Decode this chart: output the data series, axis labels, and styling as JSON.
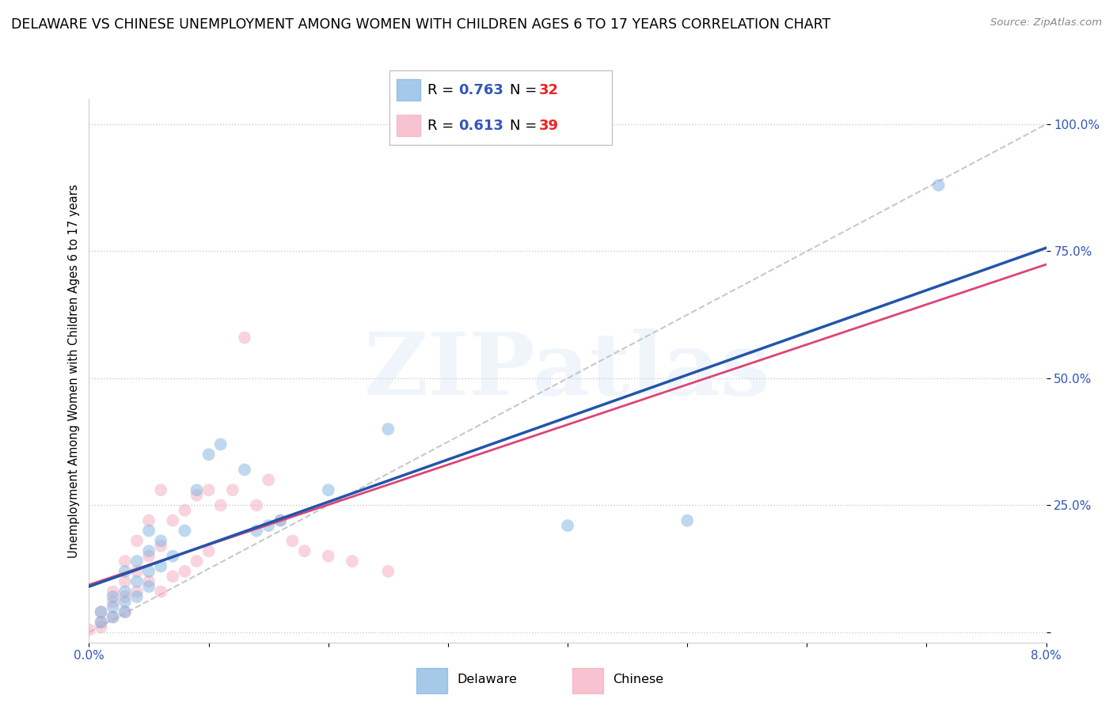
{
  "title": "DELAWARE VS CHINESE UNEMPLOYMENT AMONG WOMEN WITH CHILDREN AGES 6 TO 17 YEARS CORRELATION CHART",
  "source": "Source: ZipAtlas.com",
  "ylabel": "Unemployment Among Women with Children Ages 6 to 17 years",
  "xlim": [
    0.0,
    0.08
  ],
  "ylim": [
    -0.02,
    1.05
  ],
  "xticks": [
    0.0,
    0.01,
    0.02,
    0.03,
    0.04,
    0.05,
    0.06,
    0.07,
    0.08
  ],
  "xticklabels": [
    "0.0%",
    "",
    "",
    "",
    "",
    "",
    "",
    "",
    "8.0%"
  ],
  "ytick_positions": [
    0.0,
    0.25,
    0.5,
    0.75,
    1.0
  ],
  "yticklabels": [
    "",
    "25.0%",
    "50.0%",
    "75.0%",
    "100.0%"
  ],
  "delaware_color": "#7EB3E0",
  "chinese_color": "#F4AABC",
  "delaware_line_color": "#2255AA",
  "chinese_line_color": "#DD4477",
  "diag_color": "#BBBBBB",
  "watermark_color": "#AACCEE",
  "delaware_R": 0.763,
  "delaware_N": 32,
  "chinese_R": 0.613,
  "chinese_N": 39,
  "delaware_x": [
    0.001,
    0.001,
    0.002,
    0.002,
    0.002,
    0.003,
    0.003,
    0.003,
    0.003,
    0.004,
    0.004,
    0.004,
    0.005,
    0.005,
    0.005,
    0.005,
    0.006,
    0.006,
    0.007,
    0.008,
    0.009,
    0.01,
    0.011,
    0.013,
    0.014,
    0.015,
    0.016,
    0.02,
    0.025,
    0.04,
    0.05,
    0.071
  ],
  "delaware_y": [
    0.02,
    0.04,
    0.03,
    0.05,
    0.07,
    0.04,
    0.06,
    0.08,
    0.12,
    0.07,
    0.1,
    0.14,
    0.09,
    0.12,
    0.16,
    0.2,
    0.13,
    0.18,
    0.15,
    0.2,
    0.28,
    0.35,
    0.37,
    0.32,
    0.2,
    0.21,
    0.22,
    0.28,
    0.4,
    0.21,
    0.22,
    0.88
  ],
  "chinese_x": [
    0.0,
    0.001,
    0.001,
    0.001,
    0.002,
    0.002,
    0.002,
    0.003,
    0.003,
    0.003,
    0.003,
    0.004,
    0.004,
    0.004,
    0.005,
    0.005,
    0.005,
    0.006,
    0.006,
    0.006,
    0.007,
    0.007,
    0.008,
    0.008,
    0.009,
    0.009,
    0.01,
    0.01,
    0.011,
    0.012,
    0.013,
    0.014,
    0.015,
    0.016,
    0.017,
    0.018,
    0.02,
    0.022,
    0.025
  ],
  "chinese_y": [
    0.005,
    0.01,
    0.02,
    0.04,
    0.03,
    0.06,
    0.08,
    0.04,
    0.07,
    0.1,
    0.14,
    0.08,
    0.12,
    0.18,
    0.1,
    0.15,
    0.22,
    0.08,
    0.17,
    0.28,
    0.11,
    0.22,
    0.12,
    0.24,
    0.14,
    0.27,
    0.16,
    0.28,
    0.25,
    0.28,
    0.58,
    0.25,
    0.3,
    0.22,
    0.18,
    0.16,
    0.15,
    0.14,
    0.12
  ],
  "background_color": "#FFFFFF",
  "grid_color": "#CCCCCC",
  "dot_size": 130,
  "dot_alpha": 0.5,
  "title_fontsize": 12.5,
  "axis_label_fontsize": 10.5,
  "tick_fontsize": 11,
  "legend_fontsize": 13,
  "R_color": "#3355BB",
  "N_color": "#EE2222",
  "watermark": "ZIPatlas"
}
